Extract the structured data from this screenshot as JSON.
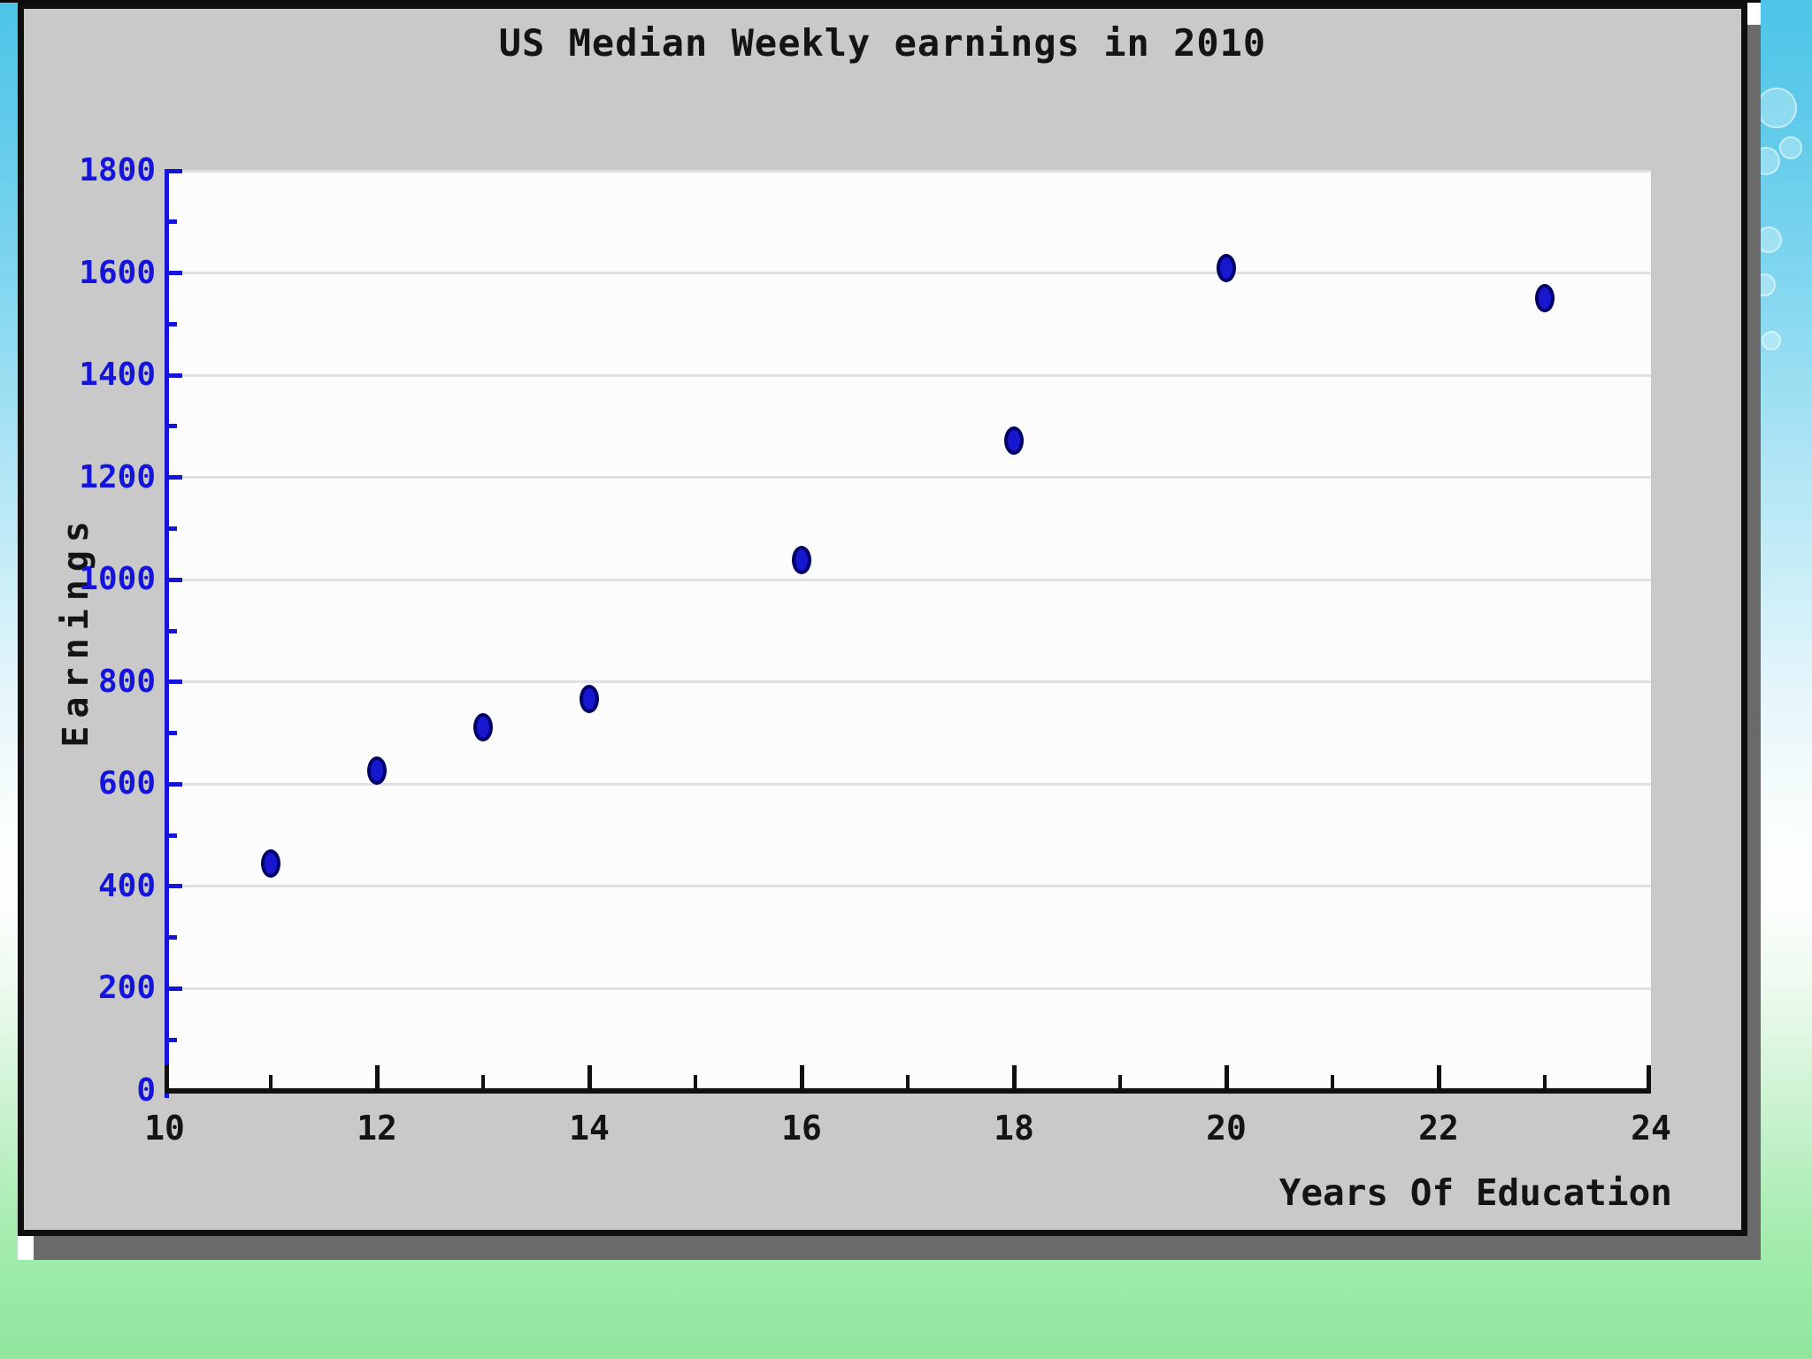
{
  "slide": {
    "background": {
      "top_color": "#4cc5e8",
      "middle_color": "#fdfffd",
      "bottom_color": "#8fe69c"
    }
  },
  "chart_data": {
    "type": "scatter",
    "title": "US Median Weekly earnings in 2010",
    "xlabel": "Years Of Education",
    "ylabel": "Earnings",
    "xlim": [
      10,
      24
    ],
    "ylim": [
      0,
      1800
    ],
    "x_major_ticks": [
      10,
      12,
      14,
      16,
      18,
      20,
      22,
      24
    ],
    "x_minor_tick_step": 1,
    "y_major_ticks": [
      0,
      200,
      400,
      600,
      800,
      1000,
      1200,
      1400,
      1600,
      1800
    ],
    "y_minor_tick_step": 100,
    "grid": "horizontal-only",
    "legend": "none",
    "points": [
      {
        "x": 11,
        "y": 444
      },
      {
        "x": 12,
        "y": 626
      },
      {
        "x": 13,
        "y": 712
      },
      {
        "x": 14,
        "y": 767
      },
      {
        "x": 16,
        "y": 1038
      },
      {
        "x": 18,
        "y": 1272
      },
      {
        "x": 20,
        "y": 1610
      },
      {
        "x": 23,
        "y": 1551
      }
    ],
    "colors": {
      "y_axis": "#1414dd",
      "x_axis": "#101010",
      "y_tick_label": "#1414dd",
      "x_tick_label": "#141414",
      "gridline": "#e0e0e0",
      "point_fill": "#1717d0",
      "point_border": "#000068",
      "plot_bg": "#fcfcfc",
      "panel_bg": "#c9c9c9"
    }
  }
}
